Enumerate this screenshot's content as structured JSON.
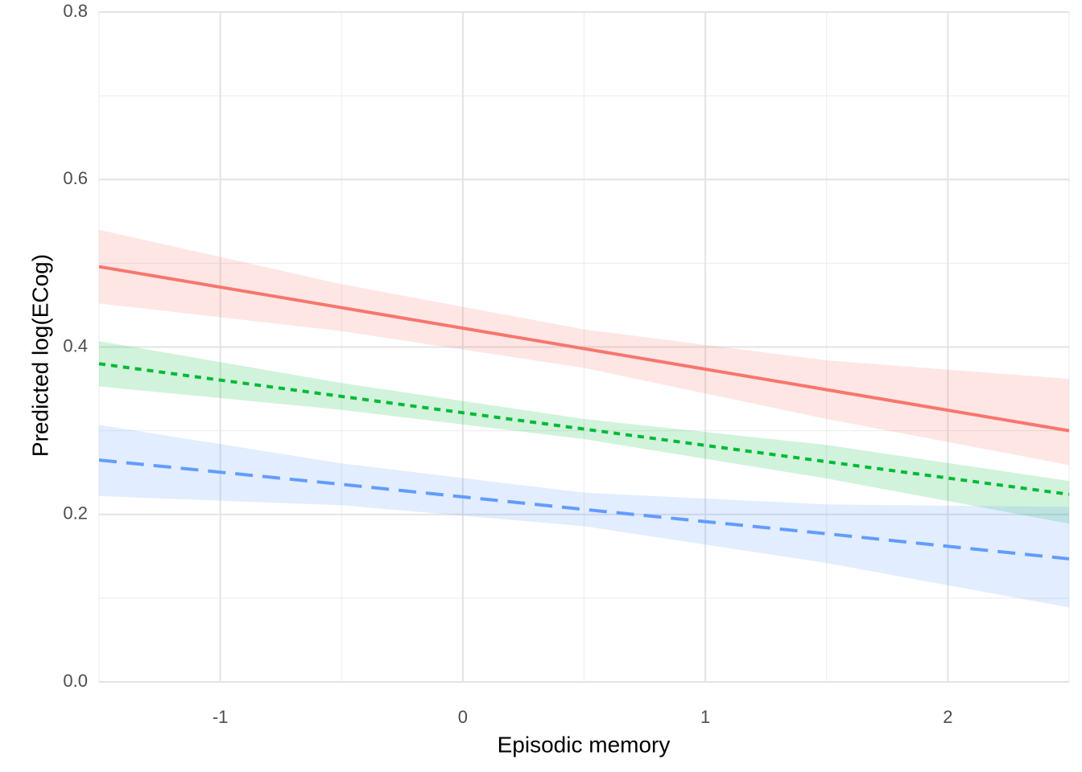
{
  "chart_data": {
    "type": "line",
    "x_label": "Episodic memory",
    "y_label": "Predicted log(ECog)",
    "x": [
      -1.5,
      -0.5,
      0.5,
      1.5,
      2.5
    ],
    "series": [
      {
        "color": "#F8766D",
        "dash": "solid",
        "values": [
          0.496,
          0.447,
          0.398,
          0.349,
          0.3
        ],
        "lower": [
          0.452,
          0.419,
          0.375,
          0.314,
          0.259
        ],
        "upper": [
          0.54,
          0.475,
          0.421,
          0.384,
          0.362
        ]
      },
      {
        "color": "#00BA38",
        "dash": "dotted",
        "values": [
          0.38,
          0.341,
          0.302,
          0.263,
          0.224
        ],
        "lower": [
          0.353,
          0.325,
          0.29,
          0.243,
          0.189
        ],
        "upper": [
          0.407,
          0.357,
          0.314,
          0.283,
          0.24
        ]
      },
      {
        "color": "#619CFF",
        "dash": "dashed",
        "values": [
          0.265,
          0.236,
          0.206,
          0.177,
          0.147
        ],
        "lower": [
          0.222,
          0.211,
          0.186,
          0.142,
          0.089
        ],
        "upper": [
          0.307,
          0.261,
          0.226,
          0.212,
          0.209
        ]
      }
    ],
    "xlim": [
      -1.5,
      2.5
    ],
    "xticks": [
      -1,
      0,
      1,
      2
    ],
    "xminor": [
      -1.5,
      -0.5,
      0.5,
      1.5,
      2.5
    ],
    "ylim": [
      0,
      0.8
    ],
    "yticks": [
      {
        "value": 0,
        "label": "0.0"
      },
      0.2,
      0.4,
      0.6,
      0.8
    ],
    "yminor": [
      0.1,
      0.3,
      0.5,
      0.7
    ],
    "grid": true
  }
}
